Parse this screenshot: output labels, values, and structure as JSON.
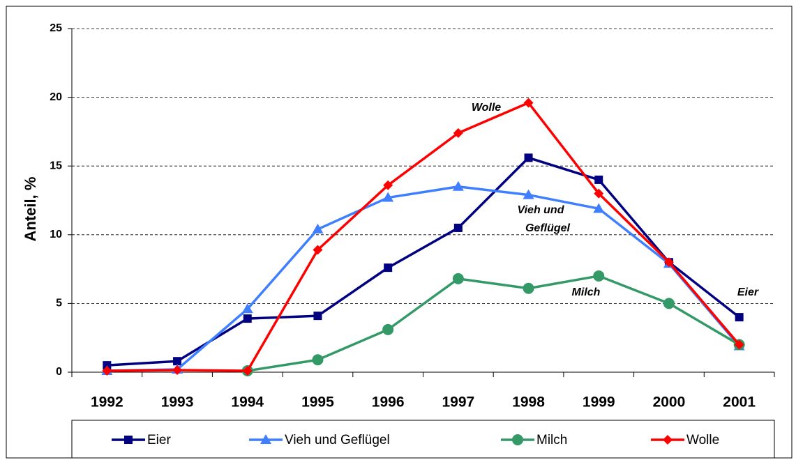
{
  "chart_data": {
    "type": "line",
    "y_label": "Anteil, %",
    "categories": [
      "1992",
      "1993",
      "1994",
      "1995",
      "1996",
      "1997",
      "1998",
      "1999",
      "2000",
      "2001"
    ],
    "series": [
      {
        "name": "Eier",
        "color": "#000080",
        "marker": "square",
        "values": [
          0.5,
          0.8,
          3.9,
          4.1,
          7.6,
          10.5,
          15.6,
          14.0,
          8.0,
          4.0
        ]
      },
      {
        "name": "Vieh und Geflügel",
        "color": "#3f7fff",
        "marker": "triangle",
        "values": [
          0.1,
          0.2,
          4.6,
          10.4,
          12.7,
          13.5,
          12.9,
          11.9,
          7.9,
          1.9
        ]
      },
      {
        "name": "Milch",
        "color": "#339966",
        "marker": "circle",
        "values": [
          null,
          null,
          0.1,
          0.9,
          3.1,
          6.8,
          6.1,
          7.0,
          5.0,
          2.0
        ]
      },
      {
        "name": "Wolle",
        "color": "#ff0000",
        "marker": "diamond",
        "values": [
          0.1,
          0.15,
          0.1,
          8.9,
          13.6,
          17.4,
          19.6,
          13.0,
          8.0,
          2.0
        ]
      }
    ],
    "annotations": [
      "Wolle",
      "Vieh und",
      "Geflügel",
      "Milch",
      "Eier"
    ],
    "ylim": [
      0,
      25
    ],
    "yticks": [
      0,
      5,
      10,
      15,
      20,
      25
    ],
    "grid": true
  }
}
